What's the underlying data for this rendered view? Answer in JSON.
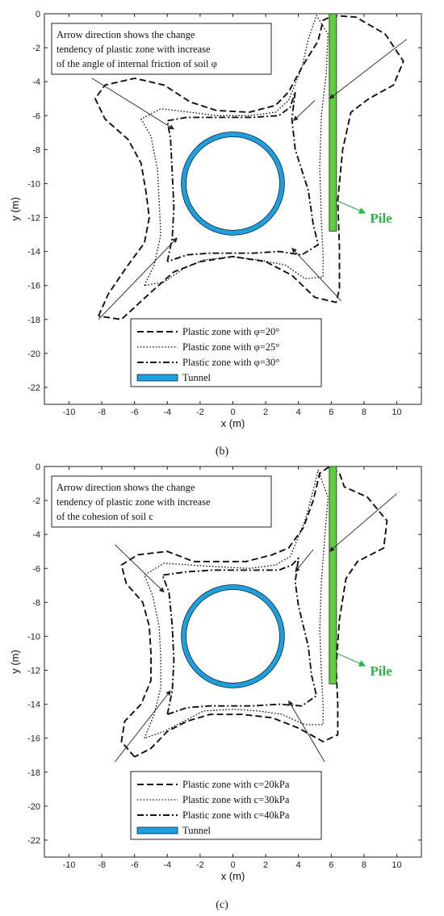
{
  "chart_data": [
    {
      "type": "line",
      "caption": "(b)",
      "xlabel": "x (m)",
      "ylabel": "y (m)",
      "xlim": [
        -11.5,
        11.5
      ],
      "ylim": [
        -23,
        0
      ],
      "xticks": [
        -10,
        -8,
        -6,
        -4,
        -2,
        0,
        2,
        4,
        6,
        8,
        10
      ],
      "yticks": [
        0,
        -2,
        -4,
        -6,
        -8,
        -10,
        -12,
        -14,
        -16,
        -18,
        -20,
        -22
      ],
      "note": [
        "Arrow direction shows the change",
        "tendency of plastic zone with increase",
        "of the angle of internal friction of soil φ"
      ],
      "pile_label": "Pile",
      "legend": [
        "Plastic zone with φ=20°",
        "Plastic zone with φ=25°",
        "Plastic zone with φ=30°",
        "Tunnel"
      ],
      "tunnel": {
        "center": [
          0,
          -10
        ],
        "radius": 3
      },
      "pile": {
        "x": 6.1,
        "y_top": 0,
        "y_bottom": -12.8
      },
      "series": [
        {
          "name": "Plastic zone with φ=20°",
          "style": "dashed",
          "points": [
            [
              -8.2,
              -17.8
            ],
            [
              -7.6,
              -16.5
            ],
            [
              -6.4,
              -14.8
            ],
            [
              -5.4,
              -13.5
            ],
            [
              -5.1,
              -12
            ],
            [
              -5.3,
              -10.5
            ],
            [
              -5.6,
              -8.8
            ],
            [
              -6.4,
              -7.4
            ],
            [
              -7.8,
              -6.2
            ],
            [
              -8.4,
              -5
            ],
            [
              -7.8,
              -4.2
            ],
            [
              -6,
              -3.8
            ],
            [
              -4.2,
              -4.2
            ],
            [
              -2.6,
              -5.2
            ],
            [
              -1,
              -5.7
            ],
            [
              1,
              -5.8
            ],
            [
              2.6,
              -5.4
            ],
            [
              3.4,
              -4.6
            ],
            [
              4.3,
              -3
            ],
            [
              5.2,
              -1.6
            ],
            [
              5.5,
              -0.4
            ],
            [
              6.1,
              -0.1
            ],
            [
              7.5,
              -0.2
            ],
            [
              9.3,
              -1.2
            ],
            [
              10.4,
              -2.8
            ],
            [
              9.8,
              -4.2
            ],
            [
              8.3,
              -5
            ],
            [
              7.2,
              -5.8
            ],
            [
              6.7,
              -8
            ],
            [
              6.4,
              -11
            ],
            [
              6.5,
              -13.8
            ],
            [
              6.5,
              -16.2
            ],
            [
              6.3,
              -17
            ],
            [
              5,
              -16.7
            ],
            [
              3.6,
              -15.4
            ],
            [
              2,
              -14.6
            ],
            [
              0,
              -14.3
            ],
            [
              -2,
              -14.6
            ],
            [
              -3.6,
              -15.2
            ],
            [
              -5,
              -16.4
            ],
            [
              -6.8,
              -18
            ],
            [
              -8.2,
              -17.8
            ]
          ]
        },
        {
          "name": "Plastic zone with φ=25°",
          "style": "dotted",
          "points": [
            [
              -5.4,
              -16
            ],
            [
              -4.8,
              -14.8
            ],
            [
              -4.4,
              -13
            ],
            [
              -4.5,
              -11
            ],
            [
              -4.6,
              -9.2
            ],
            [
              -5,
              -7.2
            ],
            [
              -5.6,
              -6.2
            ],
            [
              -4.4,
              -5.6
            ],
            [
              -2.6,
              -5.8
            ],
            [
              -1,
              -6
            ],
            [
              1,
              -6
            ],
            [
              2.6,
              -5.8
            ],
            [
              3.4,
              -5.1
            ],
            [
              4.2,
              -3.2
            ],
            [
              4.6,
              -1.5
            ],
            [
              5.1,
              -0.1
            ],
            [
              5.8,
              -1.2
            ],
            [
              5.7,
              -3.5
            ],
            [
              5.4,
              -6
            ],
            [
              5.3,
              -9
            ],
            [
              5.4,
              -12.2
            ],
            [
              5.5,
              -14.2
            ],
            [
              5.5,
              -15.5
            ],
            [
              4.4,
              -15.6
            ],
            [
              3.2,
              -14.8
            ],
            [
              1.6,
              -14.5
            ],
            [
              0,
              -14.3
            ],
            [
              -1.8,
              -14.5
            ],
            [
              -3,
              -15
            ],
            [
              -4.2,
              -15.8
            ],
            [
              -5.4,
              -16
            ]
          ]
        },
        {
          "name": "Plastic zone with φ=30°",
          "style": "dashdot",
          "points": [
            [
              -4,
              -14.6
            ],
            [
              -3.7,
              -13.2
            ],
            [
              -3.6,
              -11.4
            ],
            [
              -3.7,
              -9.4
            ],
            [
              -3.8,
              -7.4
            ],
            [
              -4,
              -6.3
            ],
            [
              -2.8,
              -6.1
            ],
            [
              -1.2,
              -6.1
            ],
            [
              1.2,
              -6.1
            ],
            [
              2.8,
              -6
            ],
            [
              3.5,
              -5.5
            ],
            [
              3.8,
              -4.6
            ],
            [
              3.6,
              -6.2
            ],
            [
              3.8,
              -8
            ],
            [
              4.2,
              -9.2
            ],
            [
              4.6,
              -10.4
            ],
            [
              4.9,
              -12.4
            ],
            [
              5.2,
              -13.6
            ],
            [
              4.2,
              -14.2
            ],
            [
              2.8,
              -14
            ],
            [
              1.2,
              -14.1
            ],
            [
              0,
              -14.1
            ],
            [
              -1.4,
              -14.1
            ],
            [
              -2.8,
              -14.2
            ],
            [
              -4,
              -14.6
            ]
          ]
        }
      ],
      "arrows": [
        [
          [
            -8.6,
            -3.8
          ],
          [
            -3.6,
            -6.8
          ]
        ],
        [
          [
            -8.2,
            -18
          ],
          [
            -3.4,
            -13.2
          ]
        ],
        [
          [
            6.6,
            -16.9
          ],
          [
            3.6,
            -13.8
          ]
        ],
        [
          [
            10.6,
            -1.5
          ],
          [
            5.9,
            -5
          ]
        ],
        [
          [
            5,
            -5.1
          ],
          [
            3.7,
            -6.3
          ]
        ]
      ]
    },
    {
      "type": "line",
      "caption": "(c)",
      "xlabel": "x (m)",
      "ylabel": "y (m)",
      "xlim": [
        -11.5,
        11.5
      ],
      "ylim": [
        -23,
        0
      ],
      "xticks": [
        -10,
        -8,
        -6,
        -4,
        -2,
        0,
        2,
        4,
        6,
        8,
        10
      ],
      "yticks": [
        0,
        -2,
        -4,
        -6,
        -8,
        -10,
        -12,
        -14,
        -16,
        -18,
        -20,
        -22
      ],
      "note": [
        "Arrow direction shows the change",
        "tendency of plastic zone with increase",
        "of the cohesion of soil c"
      ],
      "pile_label": "Pile",
      "legend": [
        "Plastic zone with c=20kPa",
        "Plastic zone with c=30kPa",
        "Plastic zone with c=40kPa",
        "Tunnel"
      ],
      "tunnel": {
        "center": [
          0,
          -10
        ],
        "radius": 3
      },
      "pile": {
        "x": 6.1,
        "y_top": 0,
        "y_bottom": -12.8
      },
      "series": [
        {
          "name": "Plastic zone with c=20kPa",
          "style": "dashed",
          "points": [
            [
              -6,
              -17.1
            ],
            [
              -6.8,
              -16.2
            ],
            [
              -6.6,
              -15
            ],
            [
              -5.6,
              -14
            ],
            [
              -5,
              -12.6
            ],
            [
              -5,
              -11
            ],
            [
              -5.1,
              -9.4
            ],
            [
              -5.5,
              -8
            ],
            [
              -6.5,
              -6.9
            ],
            [
              -6.8,
              -5.8
            ],
            [
              -5.8,
              -5.2
            ],
            [
              -4,
              -5
            ],
            [
              -2.4,
              -5.6
            ],
            [
              -0.8,
              -5.6
            ],
            [
              0.8,
              -5.6
            ],
            [
              2.4,
              -5.2
            ],
            [
              3.4,
              -4.8
            ],
            [
              4.3,
              -3.6
            ],
            [
              4.9,
              -2
            ],
            [
              5.3,
              -0.4
            ],
            [
              5.9,
              0
            ],
            [
              6.5,
              -0.4
            ],
            [
              6.8,
              -1.2
            ],
            [
              8.2,
              -1.8
            ],
            [
              9.4,
              -3.2
            ],
            [
              9.2,
              -4.8
            ],
            [
              7.6,
              -5.6
            ],
            [
              6.9,
              -6.6
            ],
            [
              6.5,
              -9
            ],
            [
              6.3,
              -11.8
            ],
            [
              6.4,
              -14
            ],
            [
              6.4,
              -15.8
            ],
            [
              5.5,
              -16.2
            ],
            [
              4,
              -15.4
            ],
            [
              2.4,
              -14.8
            ],
            [
              0.6,
              -14.6
            ],
            [
              -1.4,
              -14.6
            ],
            [
              -2.8,
              -15
            ],
            [
              -4,
              -15.6
            ],
            [
              -5,
              -16.6
            ],
            [
              -6,
              -17.1
            ]
          ]
        },
        {
          "name": "Plastic zone with c=30kPa",
          "style": "dotted",
          "points": [
            [
              -5.4,
              -16
            ],
            [
              -4.8,
              -14.6
            ],
            [
              -4.4,
              -13
            ],
            [
              -4.4,
              -11.2
            ],
            [
              -4.5,
              -9.4
            ],
            [
              -4.9,
              -7.6
            ],
            [
              -5.4,
              -6.4
            ],
            [
              -4.2,
              -5.7
            ],
            [
              -2.6,
              -5.8
            ],
            [
              -1,
              -5.9
            ],
            [
              1,
              -6
            ],
            [
              2.6,
              -5.8
            ],
            [
              3.5,
              -5.3
            ],
            [
              4.4,
              -3.2
            ],
            [
              4.9,
              -1.4
            ],
            [
              5.2,
              -0.2
            ],
            [
              5.8,
              -1.8
            ],
            [
              5.6,
              -4.2
            ],
            [
              5.4,
              -6.8
            ],
            [
              5.3,
              -9.6
            ],
            [
              5.4,
              -12.2
            ],
            [
              5.5,
              -14
            ],
            [
              5.5,
              -15.2
            ],
            [
              4.4,
              -15.2
            ],
            [
              3,
              -14.6
            ],
            [
              1.6,
              -14.4
            ],
            [
              0,
              -14.3
            ],
            [
              -1.8,
              -14.4
            ],
            [
              -3,
              -15
            ],
            [
              -4.2,
              -15.6
            ],
            [
              -5.4,
              -16
            ]
          ]
        },
        {
          "name": "Plastic zone with c=40kPa",
          "style": "dashdot",
          "points": [
            [
              -4,
              -14.6
            ],
            [
              -3.7,
              -13.2
            ],
            [
              -3.6,
              -11.4
            ],
            [
              -3.7,
              -9.4
            ],
            [
              -3.9,
              -7.4
            ],
            [
              -4.3,
              -6.4
            ],
            [
              -2.8,
              -6.2
            ],
            [
              -1.2,
              -6.1
            ],
            [
              1.2,
              -6.1
            ],
            [
              2.8,
              -6.1
            ],
            [
              3.6,
              -5.8
            ],
            [
              4,
              -5.4
            ],
            [
              3.8,
              -6.8
            ],
            [
              4,
              -8.2
            ],
            [
              4.3,
              -9.4
            ],
            [
              4.6,
              -10.6
            ],
            [
              4.8,
              -12.3
            ],
            [
              5.1,
              -13.5
            ],
            [
              4.2,
              -14.1
            ],
            [
              2.8,
              -14
            ],
            [
              1.2,
              -14.1
            ],
            [
              0,
              -14.1
            ],
            [
              -1.4,
              -14.1
            ],
            [
              -2.8,
              -14.2
            ],
            [
              -4,
              -14.6
            ]
          ]
        }
      ],
      "arrows": [
        [
          [
            -7.2,
            -4.6
          ],
          [
            -4.2,
            -7.4
          ]
        ],
        [
          [
            -7.2,
            -17.4
          ],
          [
            -3.8,
            -13.2
          ]
        ],
        [
          [
            5.6,
            -17.4
          ],
          [
            3.4,
            -13.8
          ]
        ],
        [
          [
            10,
            -1.6
          ],
          [
            5.9,
            -5
          ]
        ],
        [
          [
            4.9,
            -4.9
          ],
          [
            3.8,
            -6.2
          ]
        ]
      ]
    }
  ]
}
